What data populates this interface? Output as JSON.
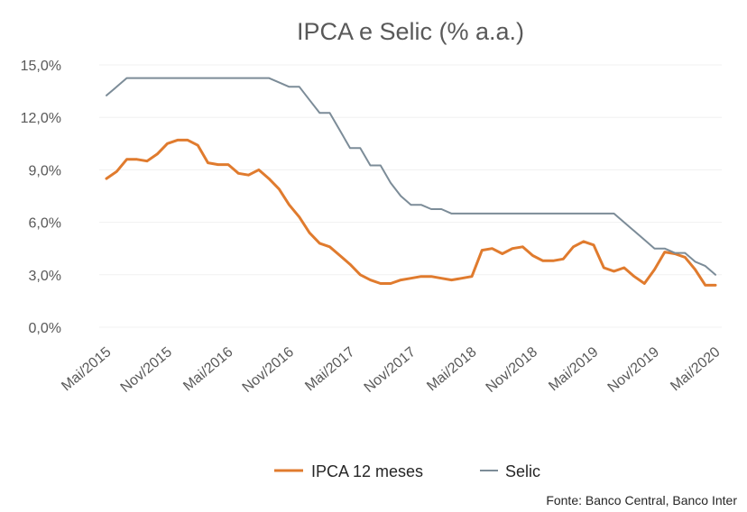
{
  "chart_data": {
    "type": "line",
    "title": "IPCA e Selic (% a.a.)",
    "xlabel": "",
    "ylabel": "",
    "x_tick_labels": [
      "Mai/2015",
      "Nov/2015",
      "Mai/2016",
      "Nov/2016",
      "Mai/2017",
      "Nov/2017",
      "Mai/2018",
      "Nov/2018",
      "Mai/2019",
      "Nov/2019",
      "Mai/2020"
    ],
    "y_tick_labels": [
      "0,0%",
      "3,0%",
      "6,0%",
      "9,0%",
      "12,0%",
      "15,0%"
    ],
    "y_ticks": [
      0,
      3,
      6,
      9,
      12,
      15
    ],
    "ylim": [
      0,
      15
    ],
    "grid": false,
    "legend_position": "bottom",
    "source": "Fonte: Banco Central, Banco Inter",
    "x": [
      "2015-05",
      "2015-06",
      "2015-07",
      "2015-08",
      "2015-09",
      "2015-10",
      "2015-11",
      "2015-12",
      "2016-01",
      "2016-02",
      "2016-03",
      "2016-04",
      "2016-05",
      "2016-06",
      "2016-07",
      "2016-08",
      "2016-09",
      "2016-10",
      "2016-11",
      "2016-12",
      "2017-01",
      "2017-02",
      "2017-03",
      "2017-04",
      "2017-05",
      "2017-06",
      "2017-07",
      "2017-08",
      "2017-09",
      "2017-10",
      "2017-11",
      "2017-12",
      "2018-01",
      "2018-02",
      "2018-03",
      "2018-04",
      "2018-05",
      "2018-06",
      "2018-07",
      "2018-08",
      "2018-09",
      "2018-10",
      "2018-11",
      "2018-12",
      "2019-01",
      "2019-02",
      "2019-03",
      "2019-04",
      "2019-05",
      "2019-06",
      "2019-07",
      "2019-08",
      "2019-09",
      "2019-10",
      "2019-11",
      "2019-12",
      "2020-01",
      "2020-02",
      "2020-03",
      "2020-04",
      "2020-05"
    ],
    "series": [
      {
        "name": "IPCA 12 meses",
        "color": "#e07b2e",
        "values": [
          8.5,
          8.9,
          9.6,
          9.6,
          9.5,
          9.9,
          10.5,
          10.7,
          10.7,
          10.4,
          9.4,
          9.3,
          9.3,
          8.8,
          8.7,
          9.0,
          8.5,
          7.9,
          7.0,
          6.3,
          5.4,
          4.8,
          4.6,
          4.1,
          3.6,
          3.0,
          2.7,
          2.5,
          2.5,
          2.7,
          2.8,
          2.9,
          2.9,
          2.8,
          2.7,
          2.8,
          2.9,
          4.4,
          4.5,
          4.2,
          4.5,
          4.6,
          4.1,
          3.8,
          3.8,
          3.9,
          4.6,
          4.9,
          4.7,
          3.4,
          3.2,
          3.4,
          2.9,
          2.5,
          3.3,
          4.3,
          4.2,
          4.0,
          3.3,
          2.4,
          2.4
        ]
      },
      {
        "name": "Selic",
        "color": "#7c8c98",
        "values": [
          13.25,
          13.75,
          14.25,
          14.25,
          14.25,
          14.25,
          14.25,
          14.25,
          14.25,
          14.25,
          14.25,
          14.25,
          14.25,
          14.25,
          14.25,
          14.25,
          14.25,
          14.0,
          13.75,
          13.75,
          13.0,
          12.25,
          12.25,
          11.25,
          10.25,
          10.25,
          9.25,
          9.25,
          8.25,
          7.5,
          7.0,
          7.0,
          6.75,
          6.75,
          6.5,
          6.5,
          6.5,
          6.5,
          6.5,
          6.5,
          6.5,
          6.5,
          6.5,
          6.5,
          6.5,
          6.5,
          6.5,
          6.5,
          6.5,
          6.5,
          6.5,
          6.0,
          5.5,
          5.0,
          4.5,
          4.5,
          4.25,
          4.25,
          3.75,
          3.5,
          3.0
        ]
      }
    ]
  }
}
